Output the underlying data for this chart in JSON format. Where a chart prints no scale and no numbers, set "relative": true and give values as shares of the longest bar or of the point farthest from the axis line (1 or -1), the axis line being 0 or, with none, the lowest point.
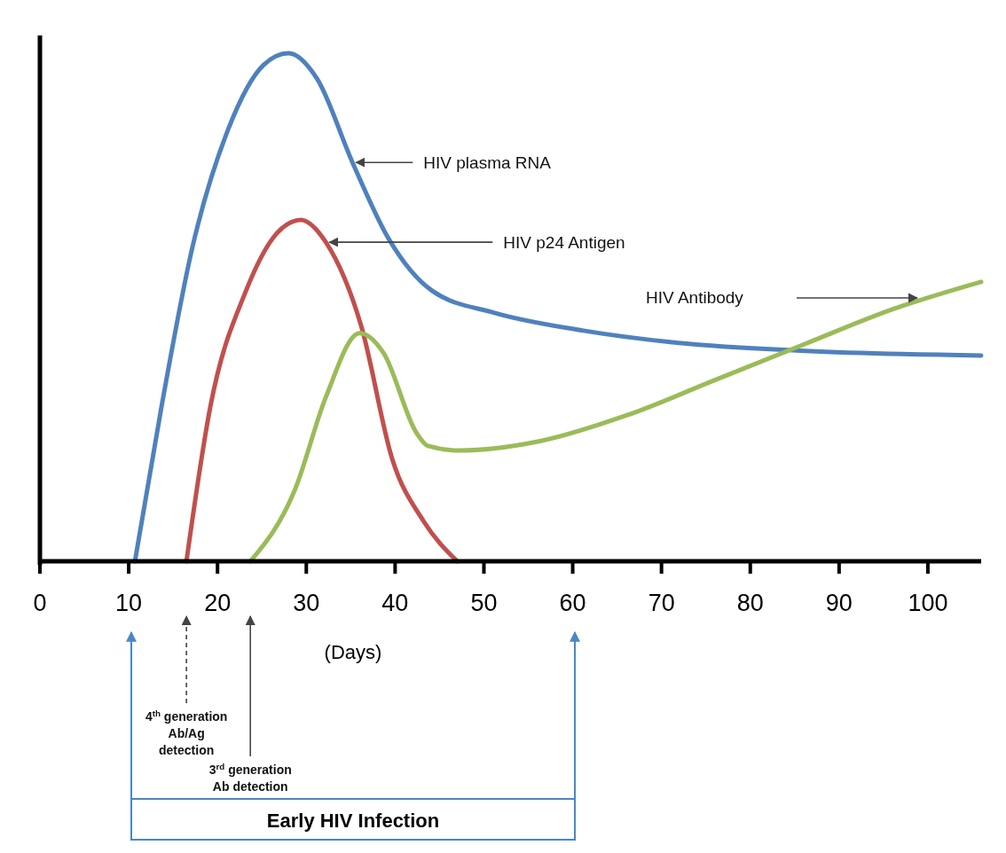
{
  "chart_data": {
    "type": "line",
    "relative": true,
    "xlabel": "(Days)",
    "xlim": [
      0,
      106
    ],
    "xticks": [
      0,
      10,
      20,
      30,
      40,
      50,
      60,
      70,
      80,
      90,
      100
    ],
    "line_style": "solid",
    "series": [
      {
        "color": "#4f81bd",
        "x": [
          10.7,
          13.7,
          17.2,
          21.2,
          25.2,
          28,
          31.2,
          35.2,
          39.2,
          44.2,
          51.2,
          61.2,
          71.2,
          86.2,
          106
        ],
        "values": [
          0,
          0.305,
          0.62,
          0.85,
          0.977,
          1,
          0.95,
          0.785,
          0.637,
          0.532,
          0.489,
          0.454,
          0.431,
          0.414,
          0.405
        ]
      },
      {
        "color": "#c0504d",
        "x": [
          16.5,
          19.2,
          23.2,
          26.7,
          29.4,
          32.2,
          36.2,
          39.7,
          43.2,
          47
        ],
        "values": [
          0,
          0.305,
          0.532,
          0.646,
          0.672,
          0.628,
          0.462,
          0.2,
          0.079,
          0
        ]
      },
      {
        "color": "#9bbb59",
        "x": [
          23.7,
          28.7,
          32.2,
          36,
          38.7,
          42.4,
          43.7,
          47.2,
          56.2,
          66.2,
          76.2,
          86.2,
          96.2,
          106
        ],
        "values": [
          0,
          0.14,
          0.323,
          0.449,
          0.41,
          0.253,
          0.227,
          0.218,
          0.236,
          0.288,
          0.358,
          0.428,
          0.497,
          0.55
        ]
      }
    ],
    "annotations": [
      {
        "text": "HIV plasma RNA",
        "x": 35.2,
        "y": 0.785
      },
      {
        "text": "HIV p24 Antigen",
        "x": 32.2,
        "y": 0.628
      },
      "HIV Antibody",
      {
        "text": "4$^{th}$ generation\nAb/Ag\ndetection",
        "x": 16.5
      },
      {
        "text": "3$^{rd}$ generation\nAb detection",
        "x": 23.7
      },
      "Early HIV Infection"
    ]
  }
}
